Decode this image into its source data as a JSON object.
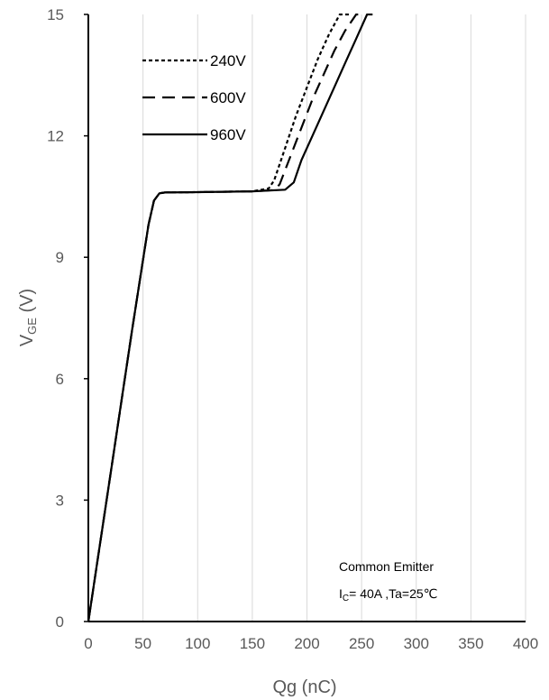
{
  "chart_data": {
    "type": "line",
    "xlabel": "Qg (nC)",
    "ylabel_main": "V",
    "ylabel_sub": "GE",
    "ylabel_unit": " (V)",
    "xlim": [
      0,
      400
    ],
    "ylim": [
      0,
      15
    ],
    "x_ticks": [
      0,
      50,
      100,
      150,
      200,
      250,
      300,
      350,
      400
    ],
    "y_ticks": [
      0,
      3,
      6,
      9,
      12,
      15
    ],
    "grid": "vertical",
    "legend_position": "top-left",
    "annotation_line1": "Common Emitter",
    "annotation_line2_main": "I",
    "annotation_line2_sub": "C",
    "annotation_line2_rest": "= 40A ,Ta=25℃",
    "series": [
      {
        "name": "240V",
        "dash": "dotted",
        "x": [
          0,
          20,
          40,
          55,
          60,
          65,
          70,
          100,
          150,
          165,
          170,
          180,
          190,
          200,
          210,
          220,
          230,
          240
        ],
        "y": [
          0,
          3.6,
          7.2,
          9.8,
          10.4,
          10.58,
          10.6,
          10.61,
          10.63,
          10.7,
          10.9,
          11.7,
          12.5,
          13.2,
          13.9,
          14.5,
          15.0,
          15.0
        ]
      },
      {
        "name": "600V",
        "dash": "dashed",
        "x": [
          0,
          20,
          40,
          55,
          60,
          65,
          70,
          100,
          150,
          170,
          175,
          185,
          195,
          205,
          215,
          225,
          235,
          245,
          250
        ],
        "y": [
          0,
          3.6,
          7.2,
          9.8,
          10.4,
          10.58,
          10.6,
          10.61,
          10.63,
          10.66,
          10.8,
          11.5,
          12.2,
          12.9,
          13.5,
          14.1,
          14.6,
          15.0,
          15.0
        ]
      },
      {
        "name": "960V",
        "dash": "solid",
        "x": [
          0,
          20,
          40,
          55,
          60,
          65,
          70,
          100,
          150,
          180,
          188,
          195,
          205,
          215,
          225,
          235,
          245,
          255,
          260
        ],
        "y": [
          0,
          3.6,
          7.2,
          9.8,
          10.4,
          10.58,
          10.6,
          10.61,
          10.63,
          10.67,
          10.85,
          11.4,
          12.0,
          12.6,
          13.2,
          13.8,
          14.4,
          15.0,
          15.0
        ]
      }
    ]
  }
}
